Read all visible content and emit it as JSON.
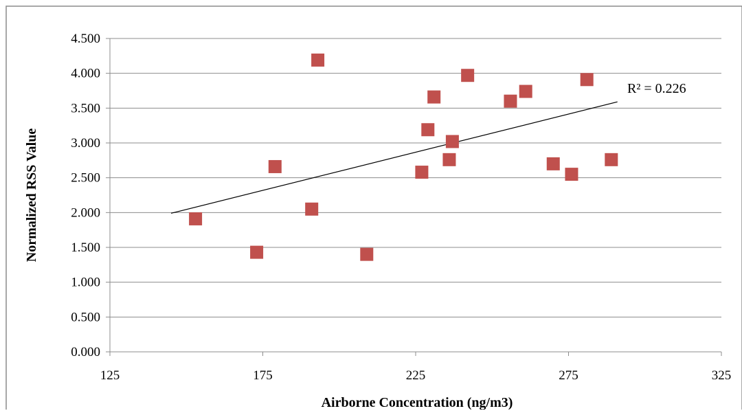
{
  "chart_data": {
    "type": "scatter",
    "title": "",
    "xlabel": "Airborne Concentration (ng/m3)",
    "ylabel": "Normalized RSS Value",
    "xlim": [
      125,
      325
    ],
    "ylim": [
      0,
      4.5
    ],
    "x_ticks": [
      "125",
      "175",
      "225",
      "275",
      "325"
    ],
    "x_tick_values": [
      125,
      175,
      225,
      275,
      325
    ],
    "y_ticks": [
      "0.000",
      "0.500",
      "1.000",
      "1.500",
      "2.000",
      "2.500",
      "3.000",
      "3.500",
      "4.000",
      "4.500"
    ],
    "y_tick_values": [
      0,
      0.5,
      1,
      1.5,
      2,
      2.5,
      3,
      3.5,
      4,
      4.5
    ],
    "grid": "horizontal",
    "marker_color": "#c0504d",
    "series": [
      {
        "points": [
          [
            153,
            1.91
          ],
          [
            173,
            1.43
          ],
          [
            179,
            2.66
          ],
          [
            191,
            2.05
          ],
          [
            193,
            4.19
          ],
          [
            209,
            1.4
          ],
          [
            227,
            2.58
          ],
          [
            229,
            3.19
          ],
          [
            231,
            3.66
          ],
          [
            236,
            2.76
          ],
          [
            237,
            3.02
          ],
          [
            242,
            3.97
          ],
          [
            256,
            3.6
          ],
          [
            261,
            3.74
          ],
          [
            270,
            2.7
          ],
          [
            276,
            2.55
          ],
          [
            281,
            3.91
          ],
          [
            289,
            2.76
          ]
        ]
      }
    ],
    "trendline": {
      "x": [
        145,
        291
      ],
      "y": [
        1.99,
        3.59
      ],
      "color": "#000000",
      "label": "R² = 0.226"
    }
  }
}
